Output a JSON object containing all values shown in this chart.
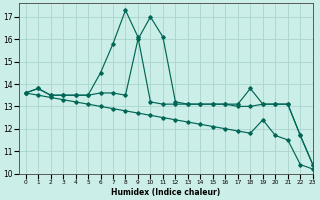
{
  "xlabel": "Humidex (Indice chaleur)",
  "ylabel": "",
  "background_color": "#cceee8",
  "grid_color": "#aad4ce",
  "line_color": "#006655",
  "xlim": [
    -0.5,
    23
  ],
  "ylim": [
    10,
    17.6
  ],
  "yticks": [
    10,
    11,
    12,
    13,
    14,
    15,
    16,
    17
  ],
  "xticks": [
    0,
    1,
    2,
    3,
    4,
    5,
    6,
    7,
    8,
    9,
    10,
    11,
    12,
    13,
    14,
    15,
    16,
    17,
    18,
    19,
    20,
    21,
    22,
    23
  ],
  "series": [
    {
      "x": [
        0,
        1,
        2,
        3,
        4,
        5,
        6,
        7,
        8,
        9,
        10,
        11,
        12,
        13,
        14,
        15,
        16,
        17,
        18,
        19,
        20,
        21,
        22,
        23
      ],
      "y": [
        13.6,
        13.8,
        13.5,
        13.5,
        13.5,
        13.5,
        14.5,
        15.8,
        17.3,
        16.1,
        13.2,
        13.1,
        13.1,
        13.1,
        13.1,
        13.1,
        13.1,
        13.1,
        13.8,
        13.1,
        13.1,
        13.1,
        11.7,
        10.4
      ]
    },
    {
      "x": [
        0,
        1,
        2,
        3,
        4,
        5,
        6,
        7,
        8,
        9,
        10,
        11,
        12,
        13,
        14,
        15,
        16,
        17,
        18,
        19,
        20,
        21,
        22,
        23
      ],
      "y": [
        13.6,
        13.8,
        13.5,
        13.5,
        13.5,
        13.5,
        13.6,
        13.6,
        13.5,
        16.0,
        17.0,
        16.1,
        13.2,
        13.1,
        13.1,
        13.1,
        13.1,
        13.0,
        13.0,
        13.1,
        13.1,
        13.1,
        11.7,
        10.4
      ]
    },
    {
      "x": [
        0,
        1,
        2,
        3,
        4,
        5,
        6,
        7,
        8,
        9,
        10,
        11,
        12,
        13,
        14,
        15,
        16,
        17,
        18,
        19,
        20,
        21,
        22,
        23
      ],
      "y": [
        13.6,
        13.5,
        13.4,
        13.3,
        13.2,
        13.1,
        13.0,
        12.9,
        12.8,
        12.7,
        12.6,
        12.5,
        12.4,
        12.3,
        12.2,
        12.1,
        12.0,
        11.9,
        11.8,
        12.4,
        11.7,
        11.5,
        10.4,
        10.2
      ]
    }
  ]
}
